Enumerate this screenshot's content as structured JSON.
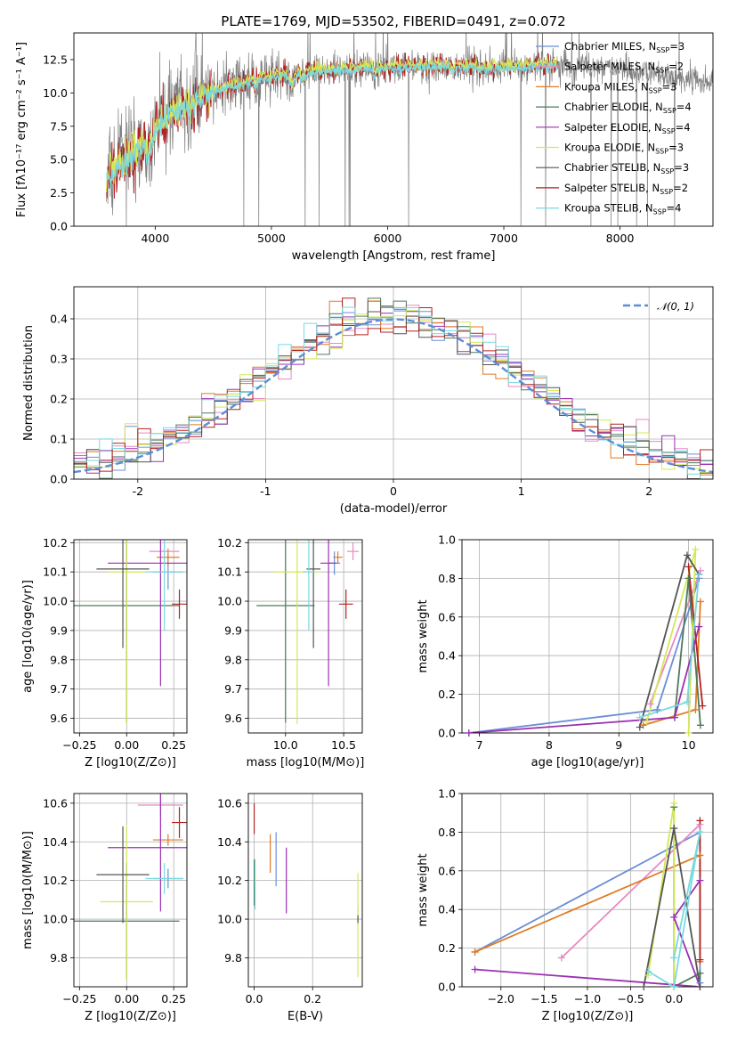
{
  "colors": {
    "chabrier_miles": "#6b8fd6",
    "salpeter_miles": "#e78ac3",
    "kroupa_miles": "#e07b25",
    "chabrier_elodie": "#4d7a5a",
    "salpeter_elodie": "#9b30b3",
    "kroupa_elodie": "#d4e857",
    "chabrier_stelib": "#555555",
    "salpeter_stelib": "#b22222",
    "kroupa_stelib": "#7ad9e0",
    "data_spectrum": "#808080",
    "normal_curve": "#5b8ed6",
    "grid": "#b0b0b0"
  },
  "chart_data": [
    {
      "id": "spectrum",
      "type": "line",
      "title": "PLATE=1769, MJD=53502, FIBERID=0491, z=0.072",
      "xlabel": "wavelength [Angstrom, rest frame]",
      "ylabel": "Flux [fλ10⁻¹⁷ erg cm⁻² s⁻¹ A⁻¹]",
      "xlim": [
        3300,
        8800
      ],
      "ylim": [
        0,
        14.5
      ],
      "xticks": [
        4000,
        5000,
        6000,
        7000,
        8000
      ],
      "yticks": [
        0.0,
        2.5,
        5.0,
        7.5,
        10.0,
        12.5
      ],
      "grid": false,
      "legend_position": "upper-right",
      "legend": [
        "Chabrier MILES, N_SSP=3",
        "Salpeter MILES, N_SSP=2",
        "Kroupa MILES, N_SSP=3",
        "Chabrier ELODIE, N_SSP=4",
        "Salpeter ELODIE, N_SSP=4",
        "Kroupa ELODIE, N_SSP=3",
        "Chabrier STELIB, N_SSP=3",
        "Salpeter STELIB, N_SSP=2",
        "Kroupa STELIB, N_SSP=4"
      ],
      "continuum": {
        "x": [
          3550,
          3650,
          3800,
          3900,
          4000,
          4100,
          4300,
          4500,
          4700,
          4900,
          5100,
          5300,
          5500,
          5800,
          6100,
          6400,
          6700,
          6900,
          7100,
          7300,
          7500,
          7700,
          8000,
          8300,
          8600,
          8800
        ],
        "y": [
          3.5,
          4.2,
          5.3,
          6.2,
          7.4,
          8.4,
          9.4,
          10.2,
          10.7,
          11.1,
          11.4,
          11.6,
          11.7,
          11.9,
          12.0,
          12.1,
          12.0,
          11.9,
          12.0,
          12.1,
          12.2,
          12.1,
          11.8,
          11.4,
          11.0,
          10.8
        ]
      }
    },
    {
      "id": "residuals",
      "type": "bar",
      "xlabel": "(data-model)/error",
      "ylabel": "Normed distribution",
      "xlim": [
        -2.5,
        2.5
      ],
      "ylim": [
        0,
        0.48
      ],
      "xticks": [
        -2,
        -1,
        0,
        1,
        2
      ],
      "yticks": [
        0.0,
        0.1,
        0.2,
        0.3,
        0.4
      ],
      "grid": true,
      "legend_position": "upper-right",
      "legend": [
        "𝒩(0, 1)"
      ],
      "bin_width": 0.1
    },
    {
      "id": "age-vs-z",
      "type": "scatter",
      "xlabel": "Z [log10(Z/Z⊙)]",
      "ylabel": "age  [log10(age/yr)]",
      "xlim": [
        -0.28,
        0.32
      ],
      "ylim": [
        9.55,
        10.21
      ],
      "xticks": [
        -0.25,
        0.0,
        0.25
      ],
      "xtick_labels": [
        "−0.25",
        "0.00",
        "0.25"
      ],
      "yticks": [
        9.6,
        9.7,
        9.8,
        9.9,
        10.0,
        10.1,
        10.2
      ],
      "grid": true,
      "points": [
        {
          "s": "chabrier_miles",
          "x": 0.22,
          "xe": 0.08,
          "y": 10.1,
          "ye": 0.06
        },
        {
          "s": "salpeter_miles",
          "x": 0.2,
          "xe": 0.08,
          "y": 10.17,
          "ye": 0.03
        },
        {
          "s": "kroupa_miles",
          "x": 0.22,
          "xe": 0.06,
          "y": 10.15,
          "ye": 0.03
        },
        {
          "s": "chabrier_elodie",
          "x": 0.0,
          "xe": 0.28,
          "y": 9.985,
          "ye": 0.4
        },
        {
          "s": "salpeter_elodie",
          "x": 0.18,
          "xe": 0.28,
          "y": 10.13,
          "ye": 0.42
        },
        {
          "s": "kroupa_elodie",
          "x": 0.0,
          "xe": 0.1,
          "y": 10.1,
          "ye": 0.52
        },
        {
          "s": "chabrier_stelib",
          "x": -0.02,
          "xe": 0.14,
          "y": 10.11,
          "ye": 0.27
        },
        {
          "s": "salpeter_stelib",
          "x": 0.28,
          "xe": 0.04,
          "y": 9.99,
          "ye": 0.05
        },
        {
          "s": "kroupa_stelib",
          "x": 0.2,
          "xe": 0.1,
          "y": 10.1,
          "ye": 0.2
        }
      ]
    },
    {
      "id": "age-vs-mass",
      "type": "scatter",
      "xlabel": "mass [log10(M/M⊙)]",
      "ylabel": "",
      "xlim": [
        9.68,
        10.66
      ],
      "ylim": [
        9.55,
        10.21
      ],
      "xticks": [
        10.0,
        10.5
      ],
      "xtick_labels": [
        "10.0",
        "10.5"
      ],
      "yticks": [
        9.6,
        9.7,
        9.8,
        9.9,
        10.0,
        10.1,
        10.2
      ],
      "grid": true,
      "points": [
        {
          "s": "chabrier_miles",
          "x": 10.42,
          "xe": 0.05,
          "y": 10.13,
          "ye": 0.04
        },
        {
          "s": "salpeter_miles",
          "x": 10.58,
          "xe": 0.05,
          "y": 10.17,
          "ye": 0.03
        },
        {
          "s": "kroupa_miles",
          "x": 10.45,
          "xe": 0.04,
          "y": 10.15,
          "ye": 0.02
        },
        {
          "s": "chabrier_elodie",
          "x": 10.0,
          "xe": 0.25,
          "y": 9.985,
          "ye": 0.4
        },
        {
          "s": "salpeter_elodie",
          "x": 10.37,
          "xe": 0.07,
          "y": 10.13,
          "ye": 0.42
        },
        {
          "s": "kroupa_elodie",
          "x": 10.1,
          "xe": 0.2,
          "y": 10.1,
          "ye": 0.52
        },
        {
          "s": "chabrier_stelib",
          "x": 10.24,
          "xe": 0.06,
          "y": 10.11,
          "ye": 0.27
        },
        {
          "s": "salpeter_stelib",
          "x": 10.52,
          "xe": 0.06,
          "y": 9.99,
          "ye": 0.05
        },
        {
          "s": "kroupa_stelib",
          "x": 10.2,
          "xe": 0.05,
          "y": 10.1,
          "ye": 0.2
        }
      ]
    },
    {
      "id": "weight-vs-age",
      "type": "line",
      "xlabel": "age  [log10(age/yr)]",
      "ylabel": "mass weight",
      "xlim": [
        6.75,
        10.35
      ],
      "ylim": [
        0,
        1.0
      ],
      "xticks": [
        7,
        8,
        9,
        10
      ],
      "yticks": [
        0.0,
        0.2,
        0.4,
        0.6,
        0.8,
        1.0
      ],
      "grid": true,
      "series": [
        {
          "s": "chabrier_miles",
          "x": [
            6.85,
            9.55,
            10.15
          ],
          "y": [
            0.0,
            0.12,
            0.8
          ]
        },
        {
          "s": "salpeter_miles",
          "x": [
            9.45,
            10.17
          ],
          "y": [
            0.15,
            0.84
          ]
        },
        {
          "s": "kroupa_miles",
          "x": [
            9.35,
            10.1,
            10.17
          ],
          "y": [
            0.04,
            0.12,
            0.68
          ]
        },
        {
          "s": "chabrier_elodie",
          "x": [
            9.8,
            10.0,
            10.17
          ],
          "y": [
            0.08,
            0.8,
            0.04
          ]
        },
        {
          "s": "salpeter_elodie",
          "x": [
            6.85,
            9.8,
            10.15
          ],
          "y": [
            0.0,
            0.08,
            0.55
          ]
        },
        {
          "s": "kroupa_elodie",
          "x": [
            9.4,
            10.1,
            10.0
          ],
          "y": [
            0.06,
            0.95,
            0.0
          ]
        },
        {
          "s": "chabrier_stelib",
          "x": [
            9.3,
            9.98,
            10.15
          ],
          "y": [
            0.03,
            0.92,
            0.82
          ]
        },
        {
          "s": "salpeter_stelib",
          "x": [
            10.0,
            10.2
          ],
          "y": [
            0.86,
            0.14
          ]
        },
        {
          "s": "kroupa_stelib",
          "x": [
            9.3,
            9.98,
            10.15
          ],
          "y": [
            0.08,
            0.16,
            0.82
          ]
        }
      ]
    },
    {
      "id": "mass-vs-z",
      "type": "scatter",
      "xlabel": "Z [log10(Z/Z⊙)]",
      "ylabel": "mass [log10(M/M⊙)]",
      "xlim": [
        -0.28,
        0.32
      ],
      "ylim": [
        9.65,
        10.65
      ],
      "xticks": [
        -0.25,
        0.0,
        0.25
      ],
      "xtick_labels": [
        "−0.25",
        "0.00",
        "0.25"
      ],
      "yticks": [
        9.8,
        10.0,
        10.2,
        10.4,
        10.6
      ],
      "grid": true,
      "points": [
        {
          "s": "chabrier_miles",
          "x": 0.22,
          "xe": 0.08,
          "y": 10.21,
          "ye": 0.05
        },
        {
          "s": "salpeter_miles",
          "x": 0.18,
          "xe": 0.12,
          "y": 10.59,
          "ye": 0.05
        },
        {
          "s": "kroupa_miles",
          "x": 0.22,
          "xe": 0.08,
          "y": 10.41,
          "ye": 0.03
        },
        {
          "s": "chabrier_elodie",
          "x": 0.0,
          "xe": 0.28,
          "y": 9.99,
          "ye": 0.3
        },
        {
          "s": "salpeter_elodie",
          "x": 0.18,
          "xe": 0.28,
          "y": 10.37,
          "ye": 0.33
        },
        {
          "s": "kroupa_elodie",
          "x": 0.0,
          "xe": 0.14,
          "y": 10.09,
          "ye": 0.4
        },
        {
          "s": "chabrier_stelib",
          "x": -0.02,
          "xe": 0.14,
          "y": 10.23,
          "ye": 0.25
        },
        {
          "s": "salpeter_stelib",
          "x": 0.28,
          "xe": 0.04,
          "y": 10.5,
          "ye": 0.08
        },
        {
          "s": "kroupa_stelib",
          "x": 0.2,
          "xe": 0.1,
          "y": 10.21,
          "ye": 0.08
        }
      ]
    },
    {
      "id": "mass-vs-ebv",
      "type": "scatter",
      "xlabel": "E(B-V)",
      "ylabel": "",
      "xlim": [
        -0.02,
        0.37
      ],
      "ylim": [
        9.65,
        10.65
      ],
      "xticks": [
        0.0,
        0.2
      ],
      "xtick_labels": [
        "0.0",
        "0.2"
      ],
      "yticks": [
        9.8,
        10.0,
        10.2,
        10.4,
        10.6
      ],
      "grid": true,
      "points": [
        {
          "s": "chabrier_miles",
          "x": 0.075,
          "xe": 0,
          "y": 10.31,
          "ye": 0.14
        },
        {
          "s": "salpeter_miles",
          "x": 0.355,
          "xe": 0,
          "y": 10.02,
          "ye": 0.05
        },
        {
          "s": "kroupa_miles",
          "x": 0.055,
          "xe": 0,
          "y": 10.34,
          "ye": 0.1
        },
        {
          "s": "chabrier_elodie",
          "x": 0.0,
          "xe": 0,
          "y": 10.19,
          "ye": 0.12
        },
        {
          "s": "salpeter_elodie",
          "x": 0.11,
          "xe": 0,
          "y": 10.2,
          "ye": 0.17
        },
        {
          "s": "kroupa_elodie",
          "x": 0.355,
          "xe": 0,
          "y": 9.97,
          "ye": 0.27
        },
        {
          "s": "chabrier_stelib",
          "x": 0.355,
          "xe": 0,
          "y": 10.0,
          "ye": 0.02
        },
        {
          "s": "salpeter_stelib",
          "x": 0.0,
          "xe": 0,
          "y": 10.52,
          "ye": 0.08
        },
        {
          "s": "kroupa_stelib",
          "x": 0.003,
          "xe": 0,
          "y": 10.18,
          "ye": 0.13
        }
      ]
    },
    {
      "id": "weight-vs-z",
      "type": "line",
      "xlabel": "Z [log10(Z/Z⊙)]",
      "ylabel": "mass weight",
      "xlim": [
        -2.45,
        0.45
      ],
      "ylim": [
        0,
        1.0
      ],
      "xticks": [
        -2.0,
        -1.5,
        -1.0,
        -0.5,
        0.0
      ],
      "xtick_labels": [
        "−2.0",
        "−1.5",
        "−1.0",
        "−0.5",
        "0.0"
      ],
      "yticks": [
        0.0,
        0.2,
        0.4,
        0.6,
        0.8,
        1.0
      ],
      "grid": true,
      "series": [
        {
          "s": "chabrier_miles",
          "x": [
            -2.3,
            0.3,
            0.3
          ],
          "y": [
            0.18,
            0.8,
            0.02
          ]
        },
        {
          "s": "salpeter_miles",
          "x": [
            -1.3,
            0.3
          ],
          "y": [
            0.15,
            0.84
          ]
        },
        {
          "s": "kroupa_miles",
          "x": [
            -2.3,
            0.3,
            0.3
          ],
          "y": [
            0.18,
            0.68,
            0.13
          ]
        },
        {
          "s": "chabrier_elodie",
          "x": [
            0.0,
            0.0,
            0.3,
            0.3
          ],
          "y": [
            0.93,
            0.0,
            0.07,
            0.0
          ]
        },
        {
          "s": "salpeter_elodie",
          "x": [
            -2.3,
            0.3,
            0.0,
            0.3
          ],
          "y": [
            0.09,
            0.0,
            0.36,
            0.55
          ]
        },
        {
          "s": "kroupa_elodie",
          "x": [
            -0.3,
            0.0,
            0.0
          ],
          "y": [
            0.06,
            0.95,
            0.0
          ]
        },
        {
          "s": "chabrier_stelib",
          "x": [
            -0.35,
            0.0,
            0.3
          ],
          "y": [
            0.0,
            0.82,
            0.0
          ]
        },
        {
          "s": "salpeter_stelib",
          "x": [
            0.3,
            0.3
          ],
          "y": [
            0.86,
            0.14
          ]
        },
        {
          "s": "kroupa_stelib",
          "x": [
            -0.3,
            0.0,
            0.3,
            0.0
          ],
          "y": [
            0.08,
            0.0,
            0.8,
            0.15
          ]
        }
      ]
    }
  ]
}
